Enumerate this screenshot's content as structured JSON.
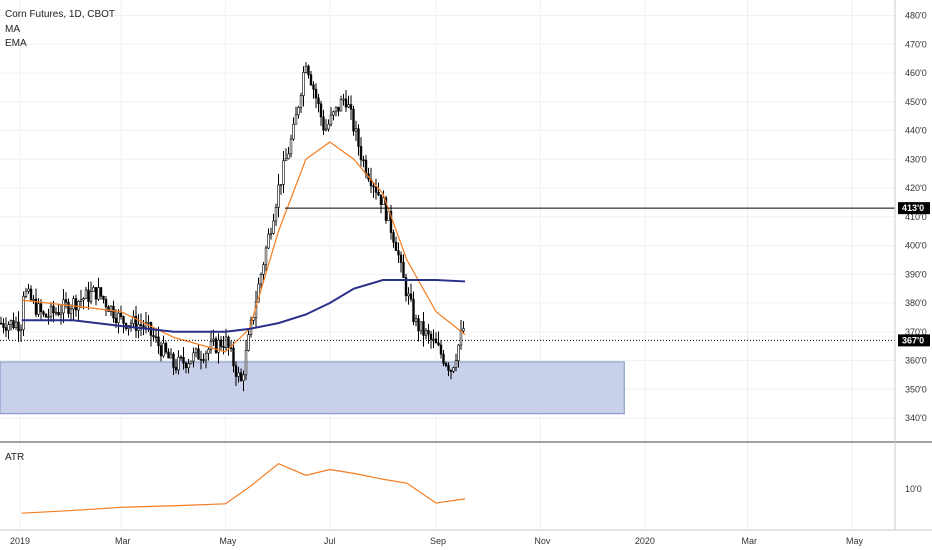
{
  "header": {
    "symbol": "Corn Futures, 1D, CBOT",
    "indicators": [
      "MA",
      "EMA"
    ]
  },
  "atr_panel": {
    "label": "ATR",
    "tick": "10'0"
  },
  "price_tags": {
    "resistance": "413'0",
    "last": "367'0"
  },
  "colors": {
    "candle": "#000000",
    "ema": "#f57c20",
    "ma": "#2a2f8a",
    "zone_fill": "#c9d0ea",
    "zone_stroke": "#8090c0",
    "atr": "#f57c20"
  },
  "chart_data": {
    "type": "line",
    "title": "Corn Futures, 1D, CBOT",
    "y_axis_ticks": [
      "340'0",
      "350'0",
      "360'0",
      "370'0",
      "380'0",
      "390'0",
      "400'0",
      "410'0",
      "420'0",
      "430'0",
      "440'0",
      "450'0",
      "460'0",
      "470'0",
      "480'0"
    ],
    "x_axis_ticks": [
      "2019",
      "Mar",
      "May",
      "Jul",
      "Sep",
      "Nov",
      "2020",
      "Mar",
      "May"
    ],
    "ylim": [
      336,
      481
    ],
    "resistance_level": 413,
    "last_price": 367,
    "support_zone": {
      "low": 341.5,
      "high": 359.5
    },
    "series": [
      {
        "name": "Price",
        "x": [
          "2019-01-02",
          "2019-01-15",
          "2019-02-01",
          "2019-02-15",
          "2019-03-01",
          "2019-03-15",
          "2019-04-01",
          "2019-04-15",
          "2019-05-01",
          "2019-05-10",
          "2019-05-20",
          "2019-06-01",
          "2019-06-10",
          "2019-06-17",
          "2019-06-28",
          "2019-07-10",
          "2019-07-20",
          "2019-08-01",
          "2019-08-09",
          "2019-08-12",
          "2019-08-20",
          "2019-09-01",
          "2019-09-10",
          "2019-09-18"
        ],
        "values": [
          385,
          375,
          380,
          384,
          374,
          372,
          358,
          362,
          367,
          352,
          385,
          420,
          440,
          465,
          440,
          452,
          430,
          415,
          400,
          390,
          373,
          365,
          357,
          373
        ]
      },
      {
        "name": "EMA",
        "x": [
          "2019-01-02",
          "2019-02-01",
          "2019-03-01",
          "2019-04-01",
          "2019-05-01",
          "2019-05-15",
          "2019-06-01",
          "2019-06-17",
          "2019-07-01",
          "2019-07-15",
          "2019-08-01",
          "2019-08-15",
          "2019-09-01",
          "2019-09-18"
        ],
        "values": [
          381,
          379,
          377,
          368,
          363,
          371,
          405,
          430,
          436,
          430,
          418,
          395,
          377,
          369
        ]
      },
      {
        "name": "MA",
        "x": [
          "2019-01-02",
          "2019-02-01",
          "2019-03-01",
          "2019-04-01",
          "2019-05-01",
          "2019-05-15",
          "2019-06-01",
          "2019-06-17",
          "2019-07-01",
          "2019-07-15",
          "2019-08-01",
          "2019-08-15",
          "2019-09-01",
          "2019-09-18"
        ],
        "values": [
          374,
          374,
          372,
          370,
          370,
          371,
          373,
          376,
          380,
          385,
          388,
          388,
          388,
          387.5
        ]
      },
      {
        "name": "ATR",
        "x": [
          "2019-01-02",
          "2019-02-01",
          "2019-03-01",
          "2019-04-01",
          "2019-05-01",
          "2019-05-15",
          "2019-06-01",
          "2019-06-17",
          "2019-07-01",
          "2019-07-15",
          "2019-08-01",
          "2019-08-15",
          "2019-09-01",
          "2019-09-18"
        ],
        "values": [
          3.8,
          4.5,
          5.3,
          5.7,
          6.2,
          10.5,
          16.5,
          13.5,
          15,
          14,
          12.5,
          11.5,
          6.4,
          7.5
        ]
      }
    ]
  }
}
